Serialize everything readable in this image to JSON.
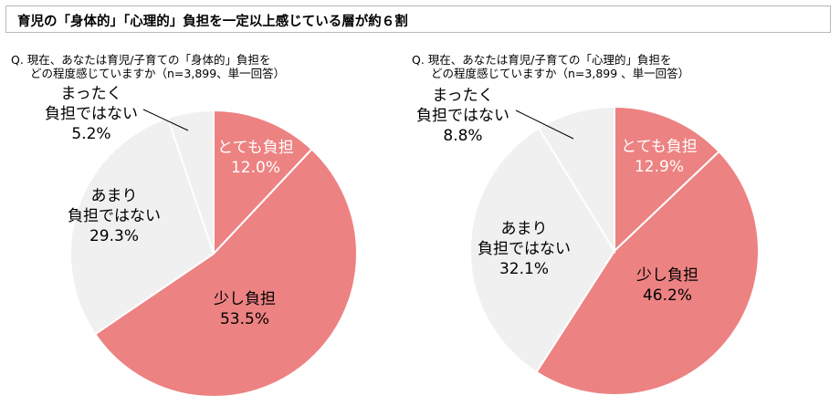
{
  "header": {
    "title": "育児の「身体的」「心理的」負担を一定以上感じている層が約６割"
  },
  "colors": {
    "heavy": "#ed8282",
    "light": "#f0f0f0",
    "stroke": "#ffffff"
  },
  "chart_data": [
    {
      "type": "pie",
      "question_line1": "Q.  現在、あなたは育児/子育ての「身体的」負担を",
      "question_line2": "どの程度感じていますか（n=3,899、単一回答）",
      "slices": [
        {
          "label": "とても負担",
          "value": 12.0,
          "value_label": "12.0%",
          "color": "#ed8282"
        },
        {
          "label": "少し負担",
          "value": 53.5,
          "value_label": "53.5%",
          "color": "#ed8282"
        },
        {
          "label": "あまり負担ではない",
          "label_lines": [
            "あまり",
            "負担ではない"
          ],
          "value": 29.3,
          "value_label": "29.3%",
          "color": "#f0f0f0"
        },
        {
          "label": "まったく負担ではない",
          "label_lines": [
            "まったく",
            "負担ではない"
          ],
          "value": 5.2,
          "value_label": "5.2%",
          "color": "#f0f0f0"
        }
      ]
    },
    {
      "type": "pie",
      "question_line1": "Q.  現在、あなたは育児/子育ての「心理的」負担を",
      "question_line2": "どの程度感じていますか（n=3,899 、単一回答）",
      "slices": [
        {
          "label": "とても負担",
          "value": 12.9,
          "value_label": "12.9%",
          "color": "#ed8282"
        },
        {
          "label": "少し負担",
          "value": 46.2,
          "value_label": "46.2%",
          "color": "#ed8282"
        },
        {
          "label": "あまり負担ではない",
          "label_lines": [
            "あまり",
            "負担ではない"
          ],
          "value": 32.1,
          "value_label": "32.1%",
          "color": "#f0f0f0"
        },
        {
          "label": "まったく負担ではない",
          "label_lines": [
            "まったく",
            "負担ではない"
          ],
          "value": 8.8,
          "value_label": "8.8%",
          "color": "#f0f0f0"
        }
      ]
    }
  ]
}
